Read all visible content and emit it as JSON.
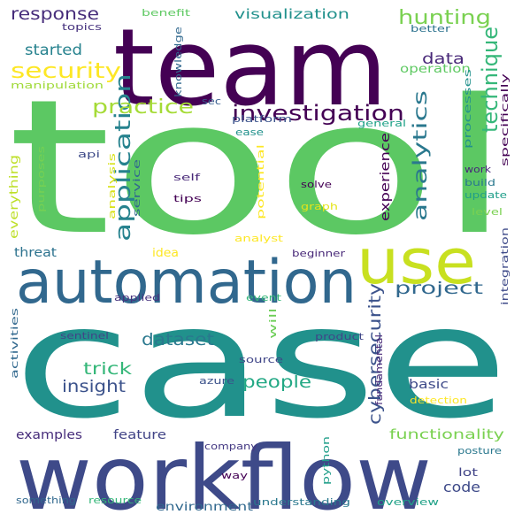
{
  "words": [
    {
      "text": "tool",
      "color": "#5cc863"
    },
    {
      "text": "case",
      "color": "#21918c"
    },
    {
      "text": "team",
      "color": "#440154"
    },
    {
      "text": "workflow",
      "color": "#3e4a89"
    },
    {
      "text": "automation",
      "color": "#31688e"
    },
    {
      "text": "use",
      "color": "#c8e020"
    },
    {
      "text": "investigation",
      "color": "#440154"
    },
    {
      "text": "security",
      "color": "#fde725"
    },
    {
      "text": "application",
      "color": "#26828e"
    },
    {
      "text": "technique",
      "color": "#35b779"
    },
    {
      "text": "hunting",
      "color": "#7ad151"
    },
    {
      "text": "practice",
      "color": "#a5db36"
    },
    {
      "text": "response",
      "color": "#472d7b"
    },
    {
      "text": "analytics",
      "color": "#2a788e"
    },
    {
      "text": "cybersecurity",
      "color": "#3b528b"
    },
    {
      "text": "project",
      "color": "#31688e"
    },
    {
      "text": "dataset",
      "color": "#2a788e"
    },
    {
      "text": "trick",
      "color": "#35b779"
    },
    {
      "text": "insight",
      "color": "#3b528b"
    },
    {
      "text": "people",
      "color": "#22a884"
    },
    {
      "text": "data",
      "color": "#482878"
    },
    {
      "text": "started",
      "color": "#26828e"
    },
    {
      "text": "visualization",
      "color": "#21918c"
    },
    {
      "text": "code",
      "color": "#3e4a89"
    },
    {
      "text": "functionality",
      "color": "#7ad151"
    },
    {
      "text": "experience",
      "color": "#440154"
    },
    {
      "text": "operation",
      "color": "#5ec962"
    },
    {
      "text": "feature",
      "color": "#414487"
    },
    {
      "text": "basic",
      "color": "#3e4a89"
    },
    {
      "text": "examples",
      "color": "#472d7b"
    },
    {
      "text": "environment",
      "color": "#31688e"
    },
    {
      "text": "threat",
      "color": "#2c728e"
    },
    {
      "text": "everything",
      "color": "#bddf26"
    },
    {
      "text": "idea",
      "color": "#fde725"
    },
    {
      "text": "beginner",
      "color": "#482878"
    },
    {
      "text": "topics",
      "color": "#46327e"
    },
    {
      "text": "benefit",
      "color": "#5ec962"
    },
    {
      "text": "better",
      "color": "#2c728e"
    },
    {
      "text": "manipulation",
      "color": "#a0da39"
    },
    {
      "text": "knowledge",
      "color": "#31688e"
    },
    {
      "text": "sec",
      "color": "#365c8d"
    },
    {
      "text": "platform",
      "color": "#3b528b"
    },
    {
      "text": "ease",
      "color": "#21918c"
    },
    {
      "text": "general",
      "color": "#1fa187"
    },
    {
      "text": "processes",
      "color": "#21918c"
    },
    {
      "text": "specifically",
      "color": "#440154"
    },
    {
      "text": "api",
      "color": "#3e4a89"
    },
    {
      "text": "purposes",
      "color": "#75d054"
    },
    {
      "text": "analysis",
      "color": "#d8e219"
    },
    {
      "text": "service",
      "color": "#31688e"
    },
    {
      "text": "self",
      "color": "#482878"
    },
    {
      "text": "tips",
      "color": "#440154"
    },
    {
      "text": "potential",
      "color": "#fde725"
    },
    {
      "text": "solve",
      "color": "#440154"
    },
    {
      "text": "graph",
      "color": "#e5e419"
    },
    {
      "text": "work",
      "color": "#482878"
    },
    {
      "text": "build",
      "color": "#2a788e"
    },
    {
      "text": "update",
      "color": "#1f9e89"
    },
    {
      "text": "level",
      "color": "#7ad151"
    },
    {
      "text": "analyst",
      "color": "#fde725"
    },
    {
      "text": "integration",
      "color": "#3e4a89"
    },
    {
      "text": "applied",
      "color": "#46327e"
    },
    {
      "text": "event",
      "color": "#35b779"
    },
    {
      "text": "will",
      "color": "#6ece58"
    },
    {
      "text": "activities",
      "color": "#31688e"
    },
    {
      "text": "sentinel",
      "color": "#414487"
    },
    {
      "text": "product",
      "color": "#404688"
    },
    {
      "text": "fundamental",
      "color": "#482878"
    },
    {
      "text": "source",
      "color": "#404688"
    },
    {
      "text": "azure",
      "color": "#3b528b"
    },
    {
      "text": "detection",
      "color": "#fde725"
    },
    {
      "text": "company",
      "color": "#443983"
    },
    {
      "text": "python",
      "color": "#1f9e89"
    },
    {
      "text": "lot",
      "color": "#414487"
    },
    {
      "text": "posture",
      "color": "#2a788e"
    },
    {
      "text": "way",
      "color": "#440154"
    },
    {
      "text": "something",
      "color": "#31688e"
    },
    {
      "text": "resource",
      "color": "#35b779"
    },
    {
      "text": "understanding",
      "color": "#2a788e"
    },
    {
      "text": "overview",
      "color": "#1fa187"
    }
  ]
}
